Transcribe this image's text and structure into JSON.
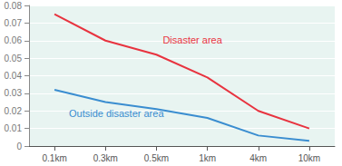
{
  "chart_data": {
    "type": "line",
    "categories": [
      "0.1km",
      "0.3km",
      "0.5km",
      "1km",
      "4km",
      "10km"
    ],
    "series": [
      {
        "name": "Disaster area",
        "color": "#e8333f",
        "values": [
          0.075,
          0.06,
          0.052,
          0.039,
          0.02,
          0.01
        ]
      },
      {
        "name": "Outside disaster area",
        "color": "#3a8dd0",
        "values": [
          0.032,
          0.025,
          0.021,
          0.016,
          0.006,
          0.003
        ]
      }
    ],
    "ylim": [
      0,
      0.08
    ],
    "yticks": [
      0,
      0.01,
      0.02,
      0.03,
      0.04,
      0.05,
      0.06,
      0.07,
      0.08
    ],
    "grid": true
  }
}
